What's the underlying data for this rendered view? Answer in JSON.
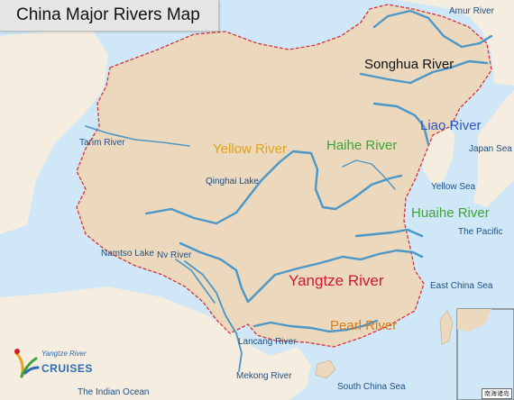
{
  "title": "China Major Rivers Map",
  "colors": {
    "sea": "#cfe7f6",
    "land": "#ecd8bd",
    "foreign": "#f4ede0",
    "river": "#4b97c7",
    "border": "#d6323a",
    "yellow_label": "#e2a21a",
    "green_label": "#3ea43a",
    "blue_label": "#2b53c4",
    "red_label": "#d0192a",
    "orange_label": "#d37d1c",
    "black_label": "#111111",
    "small_label": "#1e4f88"
  },
  "rivers": {
    "amur": "Amur River",
    "songhua": "Songhua River",
    "liao": "Liao River",
    "tarim": "Tarim River",
    "yellow": "Yellow River",
    "haihe": "Haihe River",
    "huaihe": "Huaihe River",
    "yangtze": "Yangtze River",
    "pearl": "Pearl River",
    "nv": "Nv River",
    "lancang": "Lancang River",
    "mekong": "Mekong River"
  },
  "places": {
    "qinghai_lake": "Qinghai Lake",
    "namtso_lake": "Namtso Lake"
  },
  "seas": {
    "japan": "Japan Sea",
    "yellow": "Yellow Sea",
    "pacific": "The Pacific",
    "east_china": "East China Sea",
    "south_china": "South China Sea",
    "indian": "The Indian Ocean"
  },
  "logo": {
    "line1": "Yangtze River",
    "line2": "CRUISES"
  },
  "inset_caption": "南海诸岛"
}
